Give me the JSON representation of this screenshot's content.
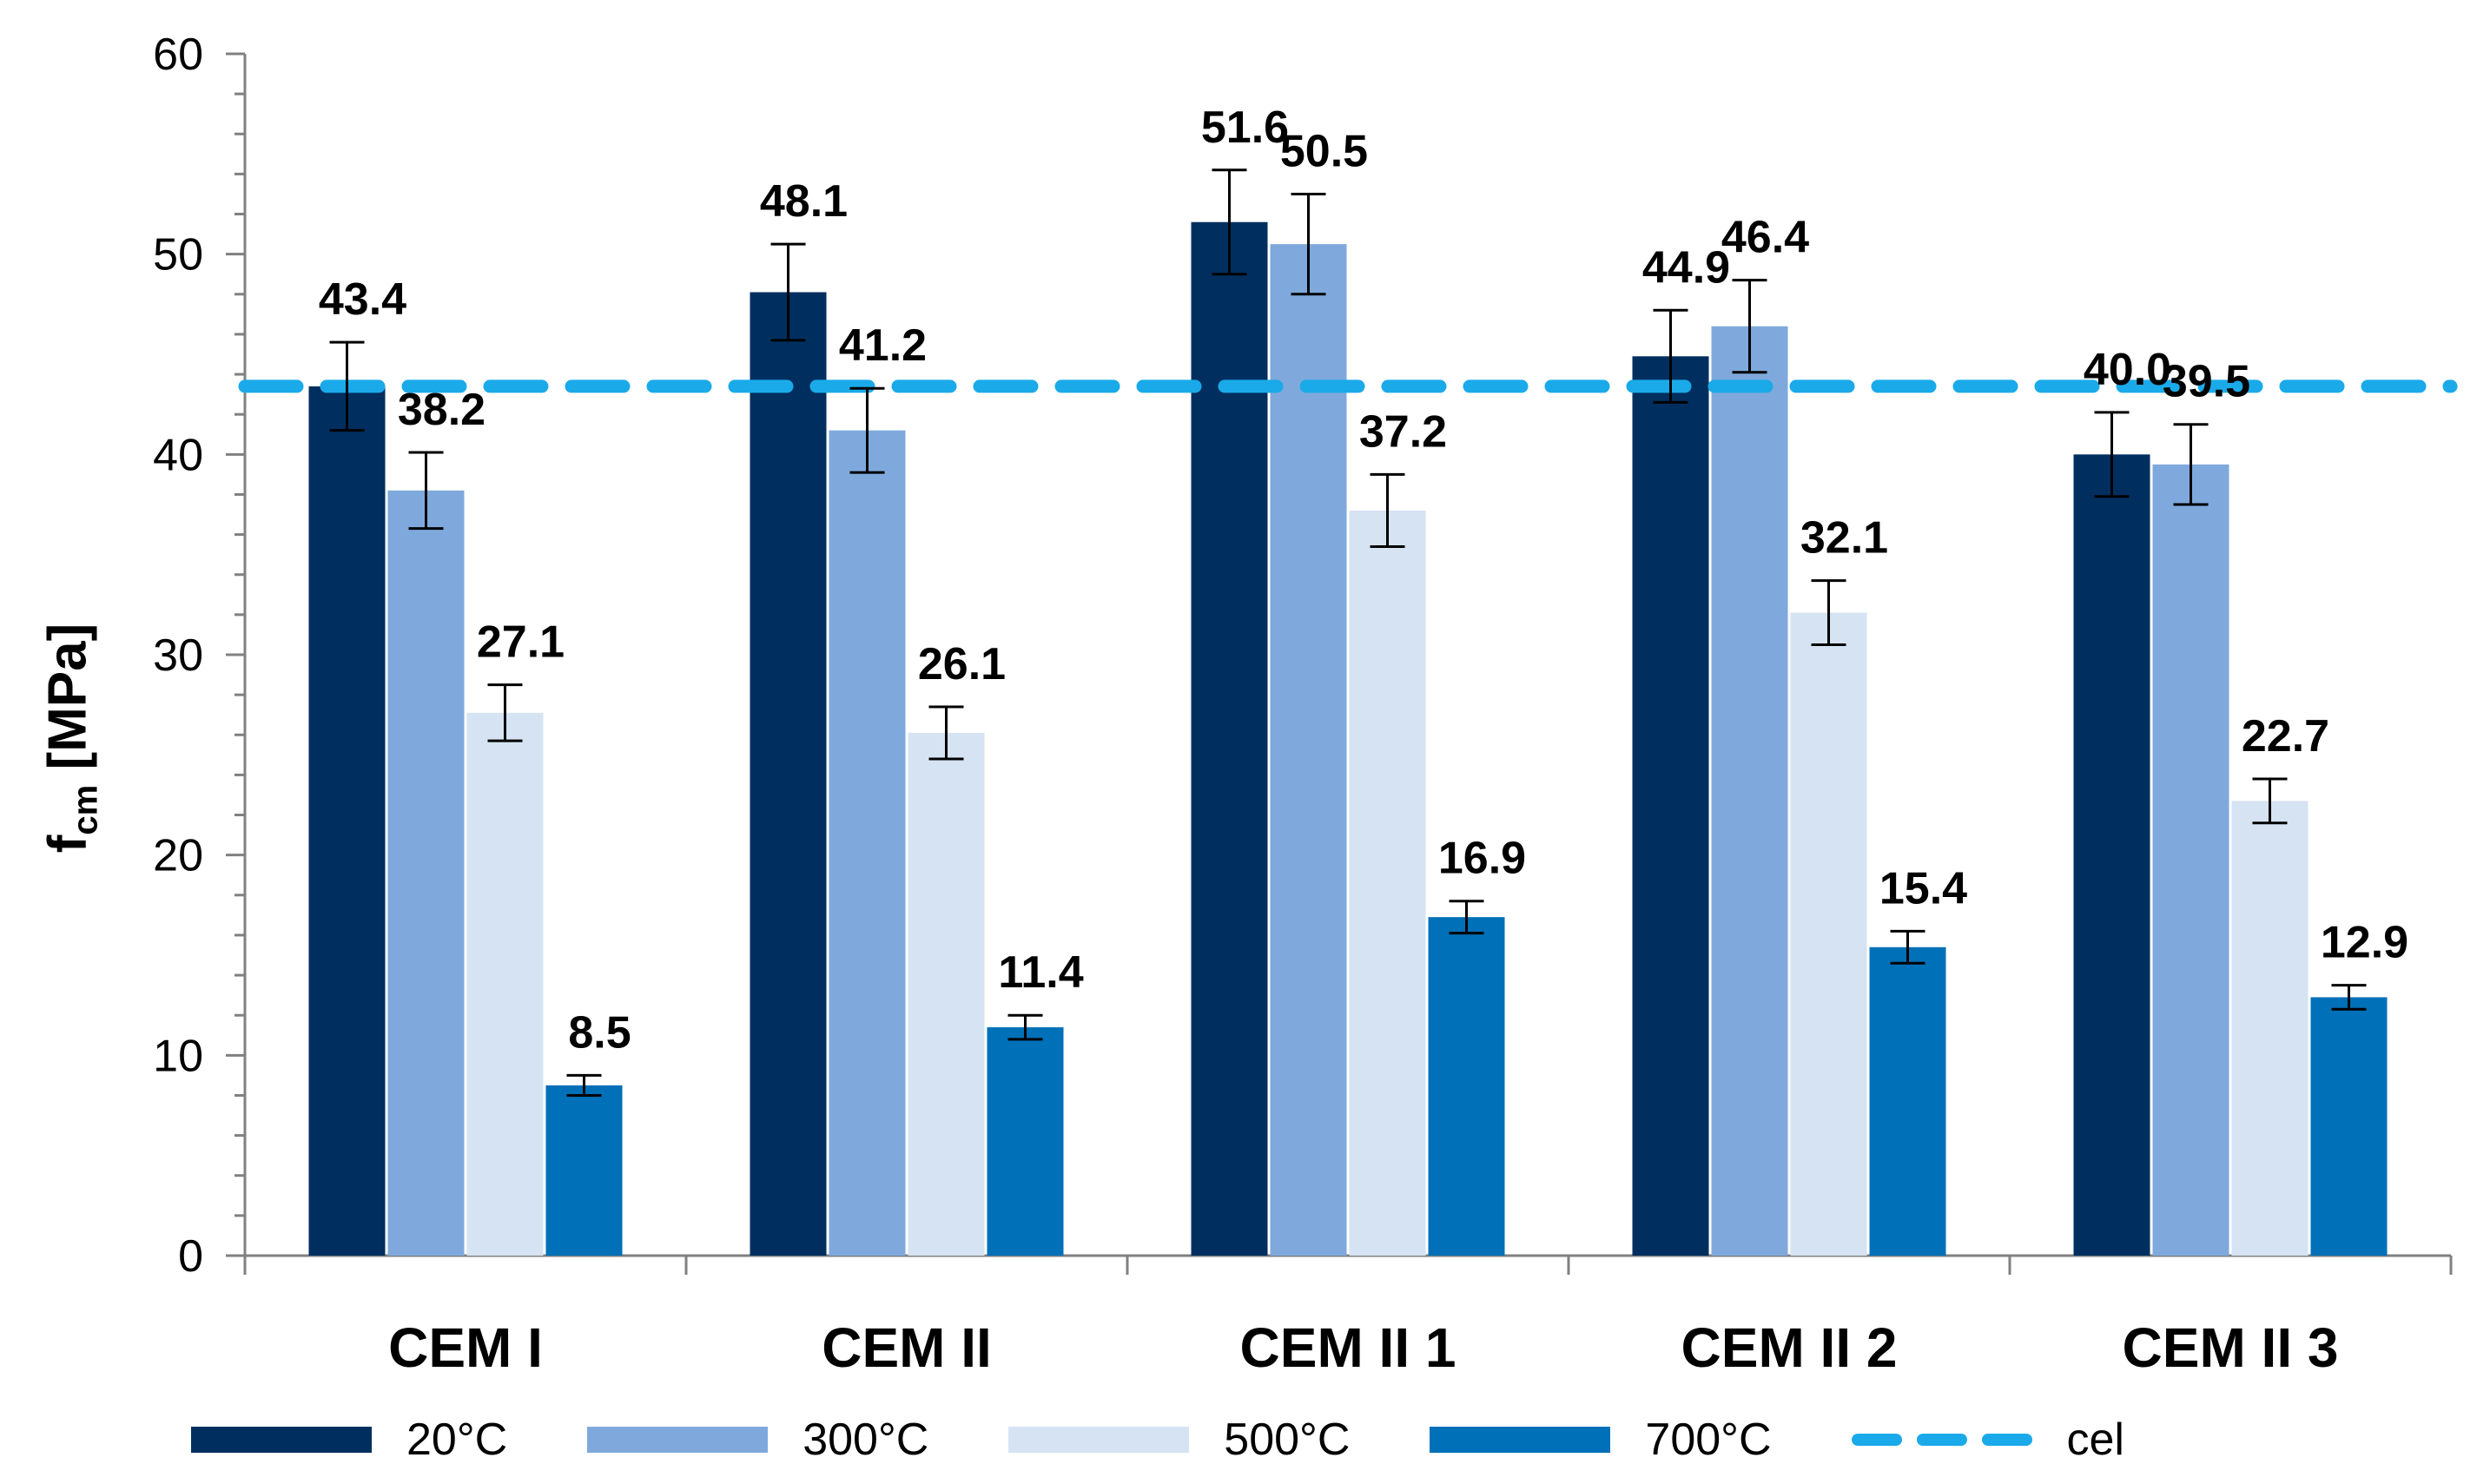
{
  "chart_data": {
    "type": "bar",
    "title": "",
    "xlabel": "",
    "ylabel": {
      "main": "f",
      "sub": "cm",
      "unit": " [MPa]"
    },
    "ylim": [
      0,
      60
    ],
    "yticks": [
      0,
      10,
      20,
      30,
      40,
      50,
      60
    ],
    "categories": [
      "CEM I",
      "CEM II",
      "CEM II 1",
      "CEM II 2",
      "CEM II 3"
    ],
    "series": [
      {
        "name": "20°C",
        "color": "#002f5f",
        "values": [
          43.4,
          48.1,
          51.6,
          44.9,
          40.0
        ],
        "labels": [
          "43.4",
          "48.1",
          "51.6",
          "44.9",
          "40.0"
        ],
        "errors": [
          2.2,
          2.4,
          2.6,
          2.3,
          2.1
        ]
      },
      {
        "name": "300°C",
        "color": "#7fa9dc",
        "values": [
          38.2,
          41.2,
          50.5,
          46.4,
          39.5
        ],
        "labels": [
          "38.2",
          "41.2",
          "50.5",
          "46.4",
          "39.5"
        ],
        "errors": [
          1.9,
          2.1,
          2.5,
          2.3,
          2.0
        ]
      },
      {
        "name": "500°C",
        "color": "#d6e3f3",
        "values": [
          27.1,
          26.1,
          37.2,
          32.1,
          22.7
        ],
        "labels": [
          "27.1",
          "26.1",
          "37.2",
          "32.1",
          "22.7"
        ],
        "errors": [
          1.4,
          1.3,
          1.8,
          1.6,
          1.1
        ]
      },
      {
        "name": "700°C",
        "color": "#0070b8",
        "values": [
          8.5,
          11.4,
          16.9,
          15.4,
          12.9
        ],
        "labels": [
          "8.5",
          "11.4",
          "16.9",
          "15.4",
          "12.9"
        ],
        "errors": [
          0.5,
          0.6,
          0.8,
          0.8,
          0.6
        ]
      }
    ],
    "reference_line": {
      "name": "cel",
      "value": 43.4,
      "color": "#1aaae9",
      "style": "dashed"
    },
    "legend_position": "bottom",
    "grid": false
  }
}
